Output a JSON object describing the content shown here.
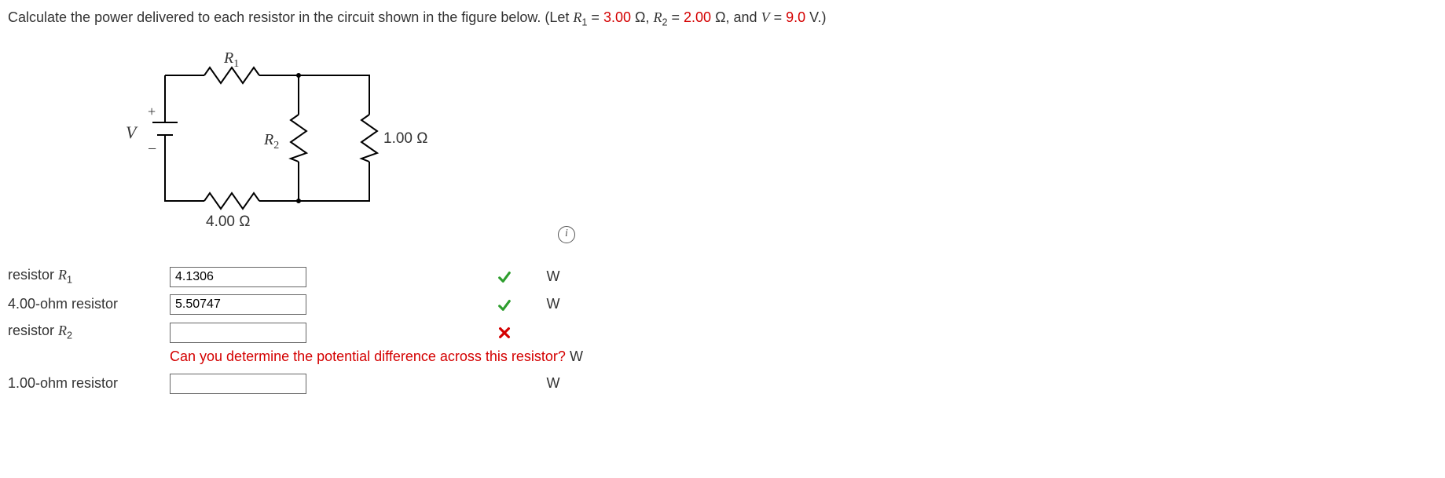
{
  "prompt": {
    "prefix": "Calculate the power delivered to each resistor in the circuit shown in the figure below. (Let ",
    "r1_symbol": "R",
    "r1_sub": "1",
    "eq": " = ",
    "r1_val": "3.00",
    "unit_ohm": " Ω, ",
    "r2_symbol": "R",
    "r2_sub": "2",
    "r2_val": "2.00",
    "unit_ohm2": " Ω, and ",
    "v_symbol": "V",
    "v_val": "9.0",
    "v_unit": " V.)"
  },
  "circuit": {
    "labels": {
      "R1": "R",
      "R1_sub": "1",
      "R2": "R",
      "R2_sub": "2",
      "R_right": "1.00 Ω",
      "R_bottom": "4.00 Ω",
      "V": "V",
      "plus": "+",
      "minus": "−"
    },
    "info_icon": "i"
  },
  "answers": {
    "rows": [
      {
        "label_pre": "resistor ",
        "label_sym": "R",
        "label_sub": "1",
        "label_post": "",
        "value": "4.1306",
        "status": "correct",
        "unit": "W"
      },
      {
        "label_pre": "4.00-ohm resistor",
        "label_sym": "",
        "label_sub": "",
        "label_post": "",
        "value": "5.50747",
        "status": "correct",
        "unit": "W"
      },
      {
        "label_pre": "resistor ",
        "label_sym": "R",
        "label_sub": "2",
        "label_post": "",
        "value": "",
        "status": "wrong",
        "unit": "W",
        "feedback": "Can you determine the potential difference across this resistor?"
      },
      {
        "label_pre": "1.00-ohm resistor",
        "label_sym": "",
        "label_sub": "",
        "label_post": "",
        "value": "",
        "status": "none",
        "unit": "W"
      }
    ]
  }
}
